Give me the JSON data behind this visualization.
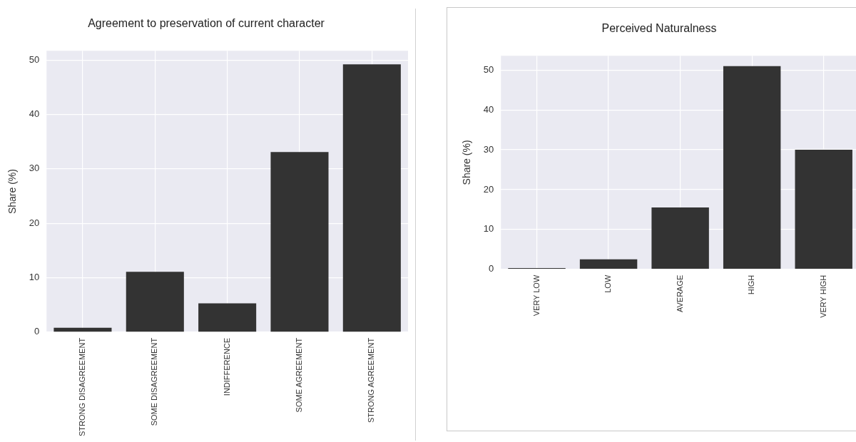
{
  "chart_data": [
    {
      "type": "bar",
      "title": "Agreement to preservation of current character",
      "ylabel": "Share (%)",
      "categories": [
        "STRONG DISAGREEMENT",
        "SOME DISAGREEMENT",
        "INDIFFERENCE",
        "SOME AGREEMENT",
        "STRONG AGREEMENT"
      ],
      "values": [
        0.8,
        11.1,
        5.3,
        33.1,
        49.2
      ],
      "color": "#333333",
      "ylim": [
        0,
        51.7
      ],
      "yticks": [
        0,
        10,
        20,
        30,
        40,
        50
      ],
      "grid": true
    },
    {
      "type": "bar",
      "title": "Perceived Naturalness",
      "ylabel": "Share (%)",
      "categories": [
        "VERY LOW",
        "LOW",
        "AVERAGE",
        "HIGH",
        "VERY HIGH"
      ],
      "values": [
        0.3,
        2.5,
        15.5,
        51.0,
        30.0
      ],
      "color": "#333333",
      "ylim": [
        0,
        53.6
      ],
      "yticks": [
        0,
        10,
        20,
        30,
        40,
        50
      ],
      "grid": true
    }
  ]
}
